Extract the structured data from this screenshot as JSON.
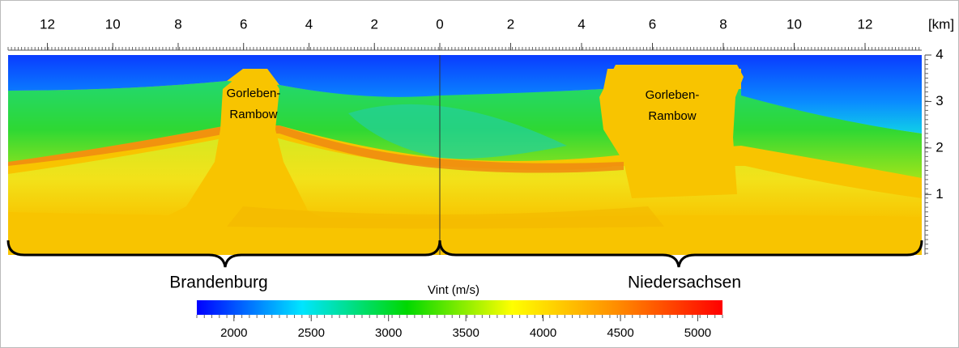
{
  "chart_data": {
    "type": "heatmap",
    "x_left": {
      "xlim": [
        13.2,
        0
      ],
      "xticks": [
        12,
        10,
        8,
        6,
        4,
        2
      ]
    },
    "x_right": {
      "xlim": [
        0,
        13.6
      ],
      "xticks": [
        0,
        2,
        4,
        6,
        8,
        10,
        12
      ]
    },
    "x_unit": "[km]",
    "ylim": [
      -0.3,
      4.0
    ],
    "yticks": [
      1,
      2,
      3,
      4
    ],
    "annotations": [
      "Gorleben-",
      "Rambow",
      "Gorleben-",
      "Rambow"
    ],
    "regions": [
      "Brandenburg",
      "Niedersachsen"
    ],
    "colorbar": {
      "title": "Vint (m/s)",
      "clim": [
        1760,
        5160
      ],
      "ticks": [
        2000,
        2500,
        3000,
        3500,
        4000,
        4500,
        5000
      ],
      "colors": [
        "#0000ff",
        "#00e5ff",
        "#00d800",
        "#ffff00",
        "#ff8c00",
        "#ff0000"
      ]
    }
  }
}
